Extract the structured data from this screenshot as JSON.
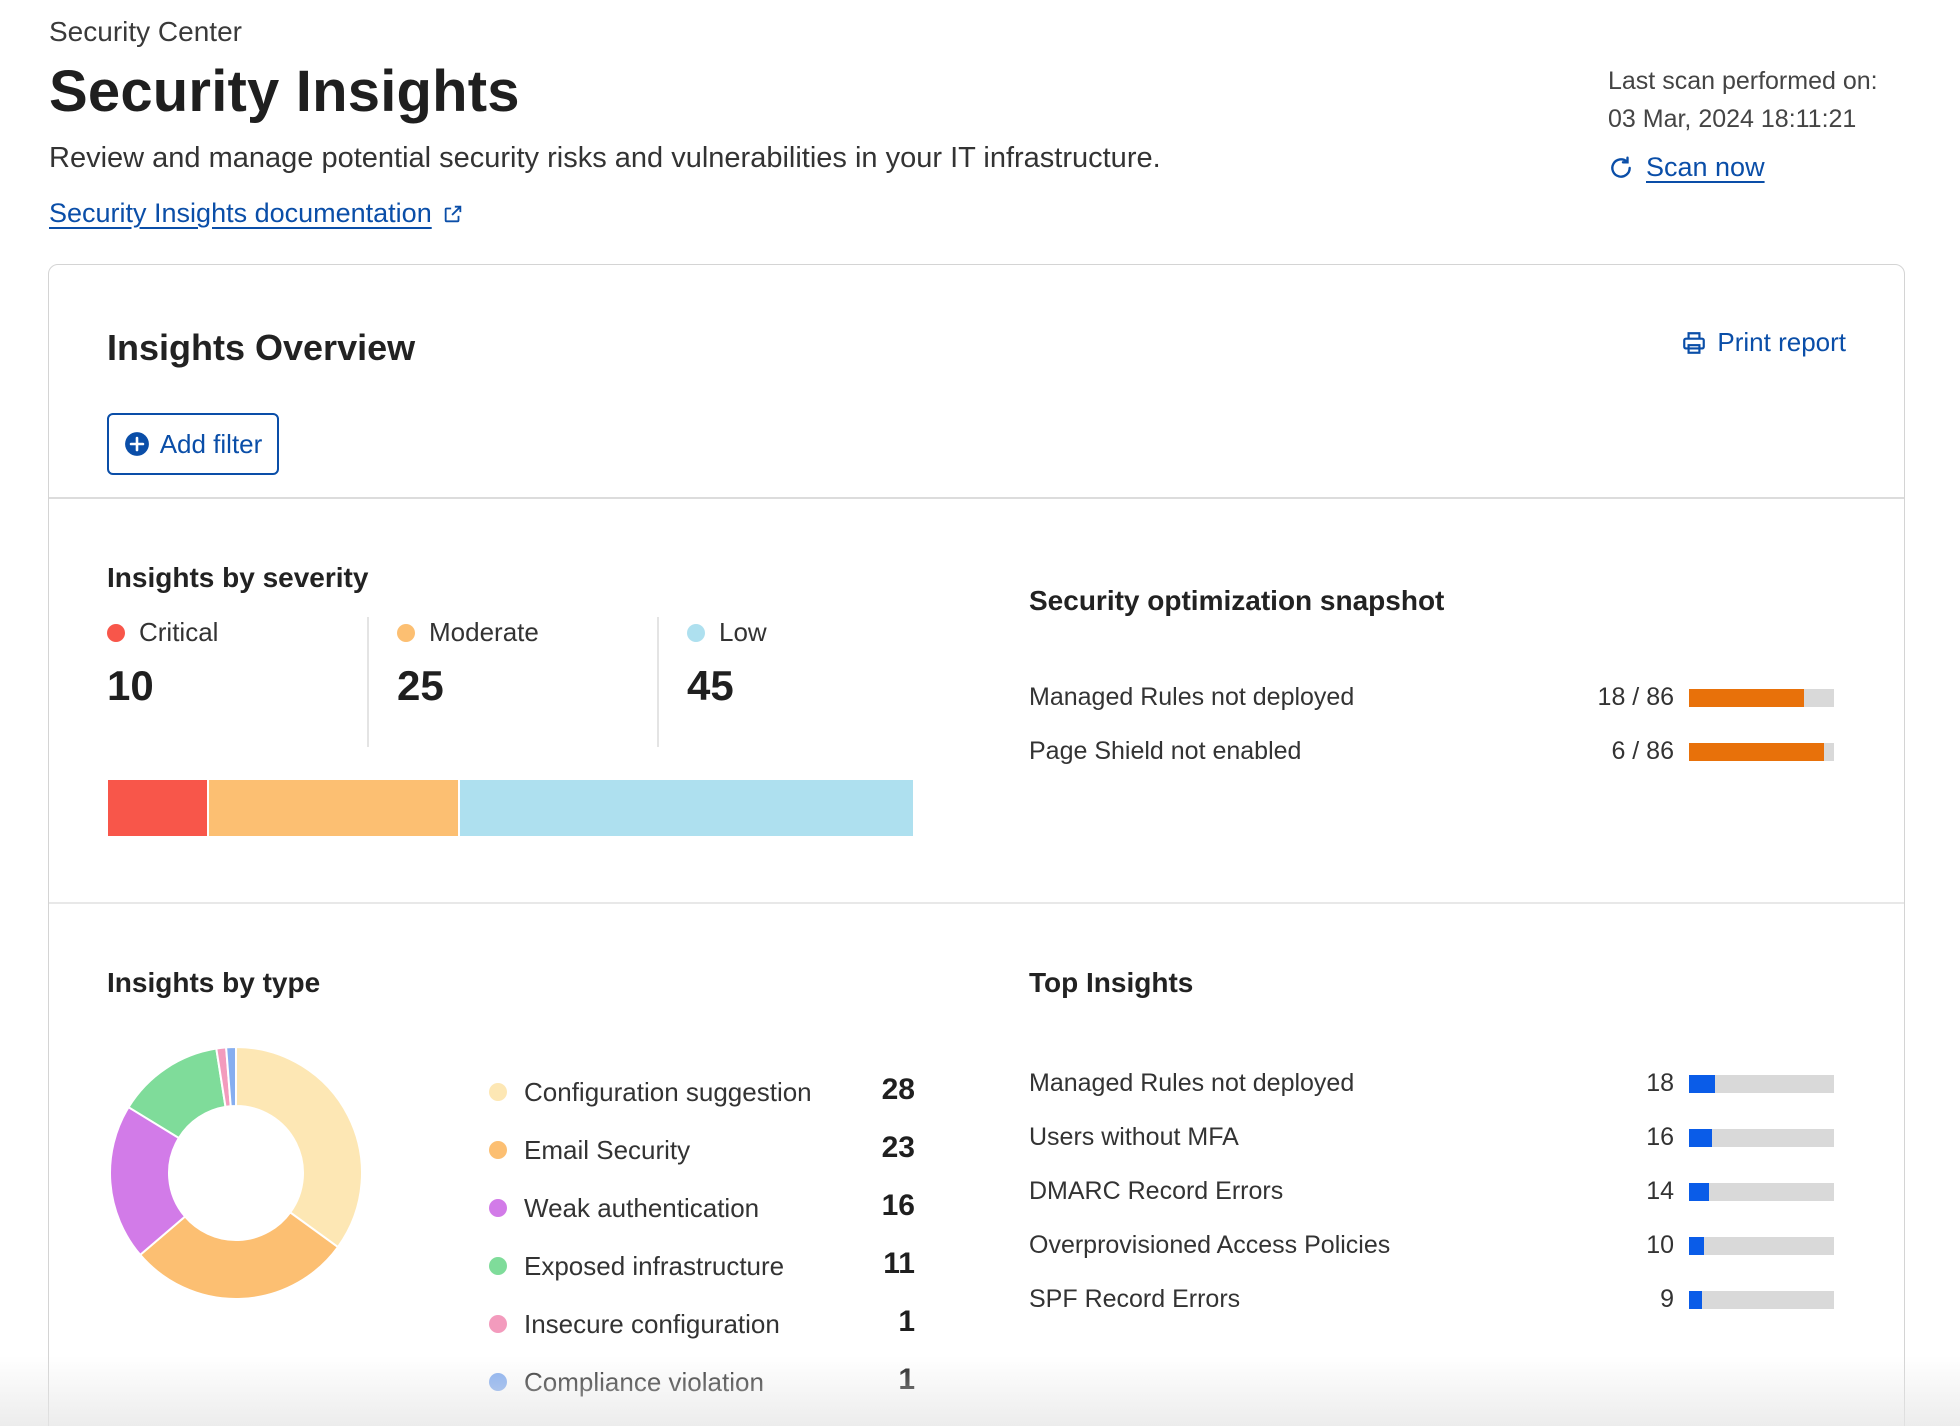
{
  "header": {
    "breadcrumb": "Security Center",
    "title": "Security Insights",
    "description": "Review and manage potential security risks and vulnerabilities in your IT infrastructure.",
    "doc_link": "Security Insights documentation",
    "scan_label": "Last scan performed on:",
    "scan_time": "03 Mar, 2024 18:11:21",
    "scan_now": "Scan now"
  },
  "overview": {
    "title": "Insights Overview",
    "print_report": "Print report",
    "add_filter": "Add filter"
  },
  "severity": {
    "title": "Insights by severity",
    "items": [
      {
        "label": "Critical",
        "count": "10",
        "value": 10,
        "color": "#f8564a"
      },
      {
        "label": "Moderate",
        "count": "25",
        "value": 25,
        "color": "#fcbf72"
      },
      {
        "label": "Low",
        "count": "45",
        "value": 45,
        "color": "#aee0ef"
      }
    ]
  },
  "snapshot": {
    "title": "Security optimization snapshot",
    "rows": [
      {
        "label": "Managed Rules not deployed",
        "value": "18 / 86",
        "fill_pct": 79
      },
      {
        "label": "Page Shield not enabled",
        "value": "6 / 86",
        "fill_pct": 93
      }
    ]
  },
  "types": {
    "title": "Insights by type",
    "items": [
      {
        "label": "Configuration suggestion",
        "count": "28",
        "value": 28,
        "color": "#fde7b4"
      },
      {
        "label": "Email Security",
        "count": "23",
        "value": 23,
        "color": "#fcbf72"
      },
      {
        "label": "Weak authentication",
        "count": "16",
        "value": 16,
        "color": "#d27be8"
      },
      {
        "label": "Exposed infrastructure",
        "count": "11",
        "value": 11,
        "color": "#7fdc9a"
      },
      {
        "label": "Insecure configuration",
        "count": "1",
        "value": 1,
        "color": "#f39bbd"
      },
      {
        "label": "Compliance violation",
        "count": "1",
        "value": 1,
        "color": "#86aef0"
      }
    ]
  },
  "top_insights": {
    "title": "Top Insights",
    "rows": [
      {
        "label": "Managed Rules not deployed",
        "value": "18",
        "fill_pct": 18
      },
      {
        "label": "Users without MFA",
        "value": "16",
        "fill_pct": 16
      },
      {
        "label": "DMARC Record Errors",
        "value": "14",
        "fill_pct": 14
      },
      {
        "label": "Overprovisioned Access Policies",
        "value": "10",
        "fill_pct": 10
      },
      {
        "label": "SPF Record Errors",
        "value": "9",
        "fill_pct": 9
      }
    ]
  },
  "colors": {
    "link": "#0a4ea8",
    "snapshot_bar": "#e8710a",
    "top_bar": "#0a5ce8",
    "track": "#d9d9d9"
  }
}
